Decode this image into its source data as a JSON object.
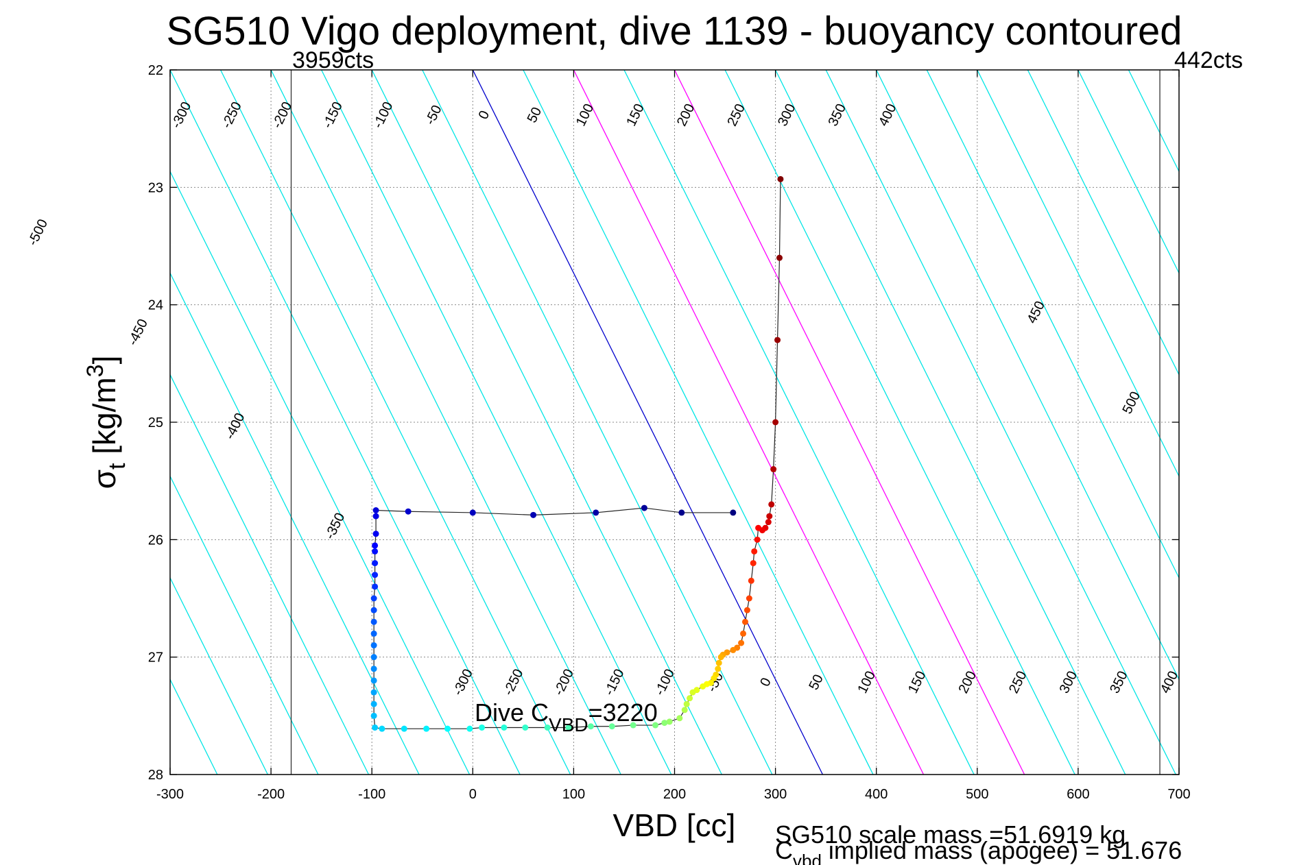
{
  "chart_data": {
    "type": "scatter",
    "title": "SG510 Vigo deployment, dive 1139 - buoyancy contoured",
    "xlabel": "VBD [cc]",
    "ylabel_main": "σ",
    "ylabel_sub": "t",
    "ylabel_units": " [kg/m",
    "ylabel_sup": "3",
    "ylabel_close": "]",
    "xlim": [
      -300,
      700
    ],
    "ylim": [
      22,
      28
    ],
    "y_reversed": true,
    "grid": true,
    "x_ticks": [
      -300,
      -200,
      -100,
      0,
      100,
      200,
      300,
      400,
      500,
      600,
      700
    ],
    "x_tick_labels": [
      "-300",
      "-200",
      "-100",
      "0",
      "100",
      "200",
      "300",
      "400",
      "500",
      "600",
      "700"
    ],
    "y_ticks": [
      22,
      23,
      24,
      25,
      26,
      27,
      28
    ],
    "y_tick_labels": [
      "22",
      "23",
      "24",
      "25",
      "26",
      "27",
      "28"
    ],
    "contours": {
      "x_at_22": 0,
      "x_per_sigma": 57.8,
      "spacing": 50,
      "levels": [
        -650,
        -600,
        -550,
        -500,
        -450,
        -400,
        -350,
        -300,
        -250,
        -200,
        -150,
        -100,
        -50,
        0,
        50,
        100,
        150,
        200,
        250,
        300,
        350,
        400,
        450,
        500,
        550,
        600,
        650,
        700,
        750
      ],
      "color": "#00e5e5",
      "zero_color": "#0000cc",
      "highlight_levels": [
        100,
        200
      ],
      "highlight_color": "#ff00ff",
      "top_labels": [
        "-300",
        "-250",
        "-200",
        "-150",
        "-100",
        "-50",
        "0",
        "50",
        "100",
        "150",
        "200",
        "250",
        "300",
        "350",
        "400"
      ],
      "left_labels": [
        "-500",
        "-450",
        "-400",
        "-350"
      ],
      "right_labels": [
        "450",
        "500"
      ],
      "bottom_labels": [
        "-300",
        "-250",
        "-200",
        "-150",
        "-100",
        "-50",
        "0",
        "50",
        "100",
        "150",
        "200",
        "250",
        "300",
        "350",
        "400"
      ]
    },
    "limit_lines": [
      {
        "x": -180,
        "label": "3959cts"
      },
      {
        "x": 681,
        "label": "442cts"
      }
    ],
    "dive_point_label": {
      "main": "Dive C",
      "sub": "VBD",
      "value": "=3220"
    },
    "series": [
      {
        "points": [
          [
            305,
            22.93
          ],
          [
            304,
            23.6
          ],
          [
            302,
            24.3
          ],
          [
            300,
            25.0
          ],
          [
            298,
            25.4
          ],
          [
            296,
            25.7
          ],
          [
            294,
            25.8
          ],
          [
            293,
            25.85
          ],
          [
            290,
            25.9
          ],
          [
            287,
            25.92
          ],
          [
            283,
            25.9
          ],
          [
            282,
            26.0
          ],
          [
            279,
            26.1
          ],
          [
            278,
            26.2
          ],
          [
            276,
            26.35
          ],
          [
            274,
            26.5
          ],
          [
            272,
            26.6
          ],
          [
            270,
            26.7
          ],
          [
            268,
            26.8
          ],
          [
            266,
            26.88
          ],
          [
            262,
            26.92
          ],
          [
            258,
            26.94
          ],
          [
            252,
            26.96
          ],
          [
            248,
            26.98
          ],
          [
            246,
            27.0
          ],
          [
            244,
            27.05
          ],
          [
            243,
            27.1
          ],
          [
            241,
            27.15
          ],
          [
            239,
            27.18
          ],
          [
            236,
            27.22
          ],
          [
            232,
            27.23
          ],
          [
            228,
            27.25
          ],
          [
            222,
            27.28
          ],
          [
            218,
            27.3
          ],
          [
            215,
            27.35
          ],
          [
            212,
            27.4
          ],
          [
            210,
            27.45
          ],
          [
            205,
            27.52
          ],
          [
            195,
            27.55
          ],
          [
            190,
            27.56
          ],
          [
            181,
            27.58
          ],
          [
            159,
            27.58
          ],
          [
            138,
            27.59
          ],
          [
            117,
            27.59
          ],
          [
            95,
            27.6
          ],
          [
            74,
            27.6
          ],
          [
            52,
            27.6
          ],
          [
            31,
            27.6
          ],
          [
            9,
            27.6
          ],
          [
            -3,
            27.61
          ],
          [
            -25,
            27.61
          ],
          [
            -46,
            27.61
          ],
          [
            -68,
            27.61
          ],
          [
            -90,
            27.61
          ],
          [
            -97,
            27.6
          ],
          [
            -98,
            27.5
          ],
          [
            -98,
            27.4
          ],
          [
            -98,
            27.3
          ],
          [
            -98,
            27.2
          ],
          [
            -98,
            27.1
          ],
          [
            -98,
            27.0
          ],
          [
            -98,
            26.9
          ],
          [
            -98,
            26.8
          ],
          [
            -98,
            26.7
          ],
          [
            -98,
            26.6
          ],
          [
            -98,
            26.5
          ],
          [
            -97,
            26.4
          ],
          [
            -97,
            26.3
          ],
          [
            -97,
            26.2
          ],
          [
            -97,
            26.1
          ],
          [
            -97,
            26.05
          ],
          [
            -96,
            25.95
          ],
          [
            -96,
            25.8
          ],
          [
            -96,
            25.75
          ],
          [
            -64,
            25.76
          ],
          [
            0,
            25.77
          ],
          [
            60,
            25.79
          ],
          [
            122,
            25.77
          ],
          [
            170,
            25.73
          ],
          [
            207,
            25.77
          ],
          [
            258,
            25.77
          ]
        ]
      }
    ],
    "annotations": [
      "SG510 scale mass =51.6919 kg",
      "C",
      "vbd",
      " implied mass (apogee) = 51.676"
    ]
  }
}
